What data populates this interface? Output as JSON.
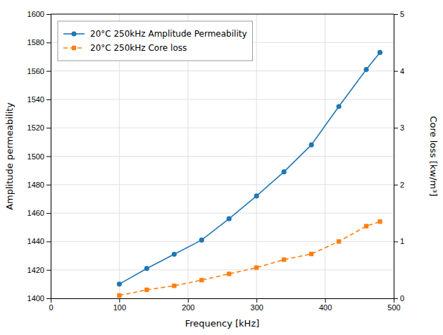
{
  "chart_data": {
    "type": "line",
    "xlabel": "Frequency [kHz]",
    "ylabel": "Amplitude permeability",
    "y2label": "Core loss [kw/m³]",
    "x": [
      100,
      140,
      180,
      220,
      260,
      300,
      340,
      380,
      420,
      460,
      480
    ],
    "series": [
      {
        "name": "20°C 250kHz Amplitude Permeability",
        "values": [
          1410,
          1421,
          1431,
          1441,
          1456,
          1472,
          1489,
          1508,
          1535,
          1561,
          1573
        ],
        "marker": "circle",
        "line_style": "solid"
      },
      {
        "name": "20°C 250kHz Core loss",
        "values": [
          0.05,
          0.15,
          0.22,
          0.32,
          0.43,
          0.54,
          0.68,
          0.78,
          1.0,
          1.27,
          1.35
        ],
        "marker": "square",
        "line_style": "dashed",
        "axis": "y2"
      }
    ],
    "xlim": [
      0,
      500
    ],
    "xticks": [
      0,
      100,
      200,
      300,
      400,
      500
    ],
    "ylim": [
      1400,
      1600
    ],
    "yticks": [
      1400,
      1420,
      1440,
      1460,
      1480,
      1500,
      1520,
      1540,
      1560,
      1580,
      1600
    ],
    "y2lim": [
      0,
      5
    ],
    "y2ticks": [
      0,
      1,
      2,
      3,
      4,
      5
    ],
    "grid": true,
    "legend": "upper left"
  }
}
